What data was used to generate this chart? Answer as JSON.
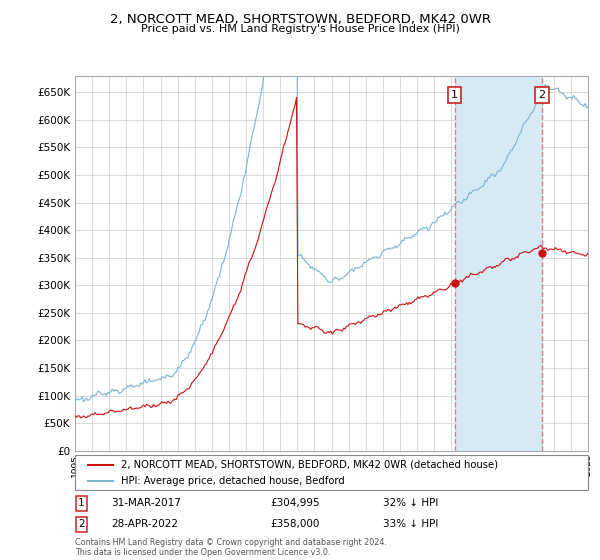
{
  "title": "2, NORCOTT MEAD, SHORTSTOWN, BEDFORD, MK42 0WR",
  "subtitle": "Price paid vs. HM Land Registry's House Price Index (HPI)",
  "hpi_label": "HPI: Average price, detached house, Bedford",
  "price_label": "2, NORCOTT MEAD, SHORTSTOWN, BEDFORD, MK42 0WR (detached house)",
  "hpi_color": "#7ab3d4",
  "hpi_fill_color": "#d6e9f5",
  "price_color": "#cc1111",
  "marker_color": "#cc1111",
  "annotation1_date": "31-MAR-2017",
  "annotation1_price": "£304,995",
  "annotation1_hpi": "32% ↓ HPI",
  "annotation2_date": "28-APR-2022",
  "annotation2_price": "£358,000",
  "annotation2_hpi": "33% ↓ HPI",
  "footnote1": "Contains HM Land Registry data © Crown copyright and database right 2024.",
  "footnote2": "This data is licensed under the Open Government Licence v3.0.",
  "ylim": [
    0,
    680000
  ],
  "yticks": [
    0,
    50000,
    100000,
    150000,
    200000,
    250000,
    300000,
    350000,
    400000,
    450000,
    500000,
    550000,
    600000,
    650000
  ],
  "xlim_start": 1995,
  "xlim_end": 2025,
  "vline1_year": 2017.21,
  "vline2_year": 2022.32,
  "purchase1_price": 304995,
  "purchase2_price": 358000,
  "background_color": "#ffffff",
  "grid_color": "#cccccc",
  "vline_color": "#e08080"
}
